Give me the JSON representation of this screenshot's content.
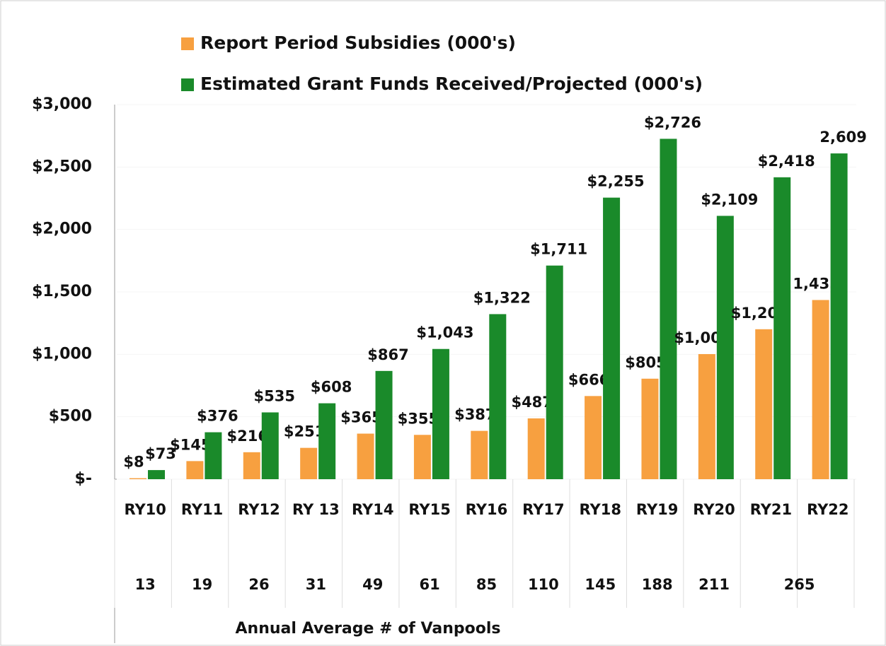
{
  "chart_data": {
    "type": "bar",
    "categories": [
      "RY10",
      "RY11",
      "RY12",
      "RY 13",
      "RY14",
      "RY15",
      "RY16",
      "RY17",
      "RY18",
      "RY19",
      "RY20",
      "RY21",
      "RY22"
    ],
    "vanpools": [
      13,
      19,
      26,
      31,
      49,
      61,
      85,
      110,
      145,
      188,
      211,
      265,
      null
    ],
    "x_label": "Annual Average # of Vanpools",
    "legend": "top",
    "series": [
      {
        "name": "Report Period Subsidies (000's)",
        "color": "#f7a040",
        "values": [
          8,
          145,
          216,
          251,
          365,
          355,
          387,
          487,
          666,
          805,
          1002,
          1201,
          1435
        ],
        "value_labels": [
          "$8",
          "$145",
          "$216",
          "$251",
          "$365",
          "$355",
          "$387",
          "$487",
          "$666",
          "$805",
          "$1,002",
          "$1,201",
          "1,435"
        ]
      },
      {
        "name": "Estimated Grant Funds Received/Projected (000's)",
        "color": "#1a8a2a",
        "values": [
          73,
          376,
          535,
          608,
          867,
          1043,
          1322,
          1711,
          2255,
          2726,
          2109,
          2418,
          2609
        ],
        "value_labels": [
          "$73",
          "$376",
          "$535",
          "$608",
          "$867",
          "$1,043",
          "$1,322",
          "$1,711",
          "$2,255",
          "$2,726",
          "$2,109",
          "$2,418",
          "2,609"
        ]
      }
    ],
    "ylim": [
      0,
      3000
    ],
    "yticks": [
      {
        "value": 0,
        "label": "$-"
      },
      {
        "value": 500,
        "label": "$500"
      },
      {
        "value": 1000,
        "label": "$1,000"
      },
      {
        "value": 1500,
        "label": "$1,500"
      },
      {
        "value": 2000,
        "label": "$2,000"
      },
      {
        "value": 2500,
        "label": "$2,500"
      },
      {
        "value": 3000,
        "label": "$3,000"
      }
    ]
  }
}
